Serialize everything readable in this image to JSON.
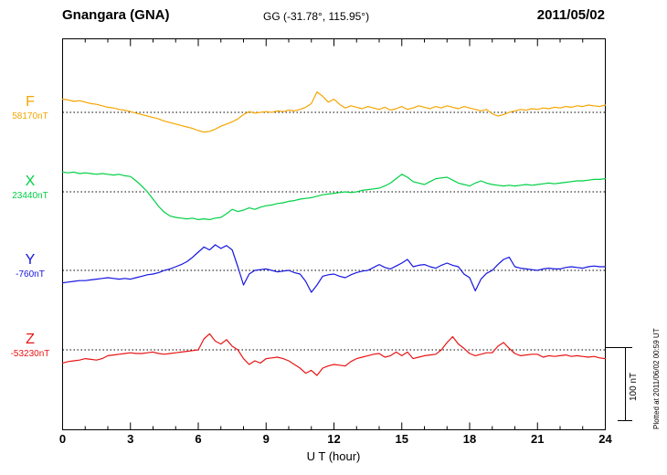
{
  "header": {
    "station": "Gnangara (GNA)",
    "coords": "GG (-31.78°, 115.95°)",
    "date": "2011/05/02"
  },
  "xaxis": {
    "label": "U T (hour)",
    "ticks": [
      0,
      3,
      6,
      9,
      12,
      15,
      18,
      21,
      24
    ],
    "min": 0,
    "max": 24
  },
  "scalebar": {
    "label": "100 nT",
    "nT": 100
  },
  "plot_note": "Plotted at 2011/06/02 00:59 UT",
  "chart_data": {
    "type": "line",
    "title": "Gnangara (GNA) magnetogram 2011/05/02",
    "xlabel": "U T (hour)",
    "xlim": [
      0,
      24
    ],
    "x_hours_step": 0.25,
    "grid": "dotted-baselines",
    "legend_position": "left-of-axis",
    "scale_nT_per_bar": 100,
    "series": [
      {
        "name": "F",
        "baseline_label": "58170nT",
        "color": "#f5a500",
        "values": [
          18,
          17,
          15,
          16,
          14,
          12,
          11,
          9,
          7,
          6,
          4,
          3,
          1,
          -1,
          -3,
          -5,
          -7,
          -9,
          -12,
          -14,
          -16,
          -18,
          -20,
          -22,
          -25,
          -27,
          -26,
          -23,
          -19,
          -16,
          -13,
          -9,
          -3,
          1,
          -1,
          0,
          1,
          0,
          2,
          1,
          3,
          2,
          4,
          7,
          12,
          28,
          22,
          14,
          18,
          11,
          6,
          9,
          7,
          5,
          8,
          6,
          4,
          7,
          3,
          5,
          8,
          4,
          6,
          9,
          7,
          5,
          8,
          6,
          9,
          7,
          5,
          8,
          6,
          4,
          2,
          4,
          -2,
          -5,
          -3,
          0,
          2,
          4,
          3,
          5,
          4,
          6,
          5,
          7,
          6,
          8,
          7,
          9,
          8,
          10,
          9,
          8,
          10
        ]
      },
      {
        "name": "X",
        "baseline_label": "23440nT",
        "color": "#00d045",
        "values": [
          27,
          26,
          27,
          25,
          26,
          25,
          24,
          25,
          24,
          23,
          24,
          22,
          21,
          15,
          8,
          0,
          -10,
          -20,
          -28,
          -33,
          -35,
          -36,
          -37,
          -36,
          -38,
          -37,
          -38,
          -36,
          -35,
          -30,
          -24,
          -27,
          -25,
          -22,
          -24,
          -21,
          -19,
          -18,
          -16,
          -15,
          -13,
          -12,
          -10,
          -9,
          -8,
          -6,
          -4,
          -3,
          -2,
          -1,
          0,
          -1,
          0,
          2,
          3,
          4,
          5,
          8,
          12,
          18,
          24,
          20,
          14,
          12,
          10,
          14,
          18,
          19,
          20,
          16,
          12,
          10,
          8,
          12,
          15,
          12,
          10,
          9,
          8,
          9,
          8,
          9,
          10,
          9,
          10,
          11,
          12,
          11,
          12,
          13,
          14,
          15,
          15,
          16,
          17,
          17,
          18
        ]
      },
      {
        "name": "Y",
        "baseline_label": "-760nT",
        "color": "#1515e0",
        "values": [
          -17,
          -16,
          -15,
          -14,
          -14,
          -13,
          -12,
          -11,
          -10,
          -11,
          -12,
          -11,
          -12,
          -10,
          -8,
          -6,
          -5,
          -3,
          0,
          2,
          5,
          8,
          12,
          18,
          25,
          32,
          28,
          35,
          30,
          34,
          28,
          5,
          -20,
          -5,
          0,
          1,
          2,
          0,
          -2,
          -1,
          0,
          -3,
          -5,
          -15,
          -30,
          -20,
          -8,
          -6,
          -5,
          -8,
          -10,
          -6,
          -3,
          -1,
          0,
          4,
          8,
          4,
          2,
          6,
          10,
          15,
          5,
          7,
          8,
          5,
          3,
          7,
          10,
          7,
          5,
          -5,
          -10,
          -28,
          -12,
          -4,
          0,
          8,
          15,
          18,
          5,
          3,
          2,
          1,
          0,
          2,
          3,
          2,
          2,
          4,
          5,
          4,
          3,
          5,
          6,
          5,
          5
        ]
      },
      {
        "name": "Z",
        "baseline_label": "-53230nT",
        "color": "#e81414",
        "values": [
          -18,
          -16,
          -15,
          -14,
          -12,
          -13,
          -14,
          -12,
          -8,
          -7,
          -6,
          -5,
          -4,
          -5,
          -5,
          -4,
          -3,
          -5,
          -6,
          -5,
          -4,
          -3,
          -2,
          -1,
          0,
          15,
          22,
          12,
          8,
          14,
          5,
          0,
          -12,
          -20,
          -15,
          -18,
          -12,
          -11,
          -10,
          -12,
          -15,
          -20,
          -25,
          -32,
          -28,
          -35,
          -25,
          -22,
          -20,
          -21,
          -22,
          -16,
          -12,
          -10,
          -8,
          -6,
          -5,
          -10,
          -8,
          -3,
          -8,
          -3,
          -12,
          -10,
          -8,
          -7,
          -6,
          0,
          10,
          18,
          8,
          2,
          -5,
          -8,
          -6,
          -4,
          -4,
          5,
          10,
          2,
          -5,
          -8,
          -7,
          -6,
          -6,
          -10,
          -8,
          -9,
          -8,
          -7,
          -9,
          -8,
          -9,
          -10,
          -9,
          -11,
          -12
        ]
      }
    ]
  }
}
